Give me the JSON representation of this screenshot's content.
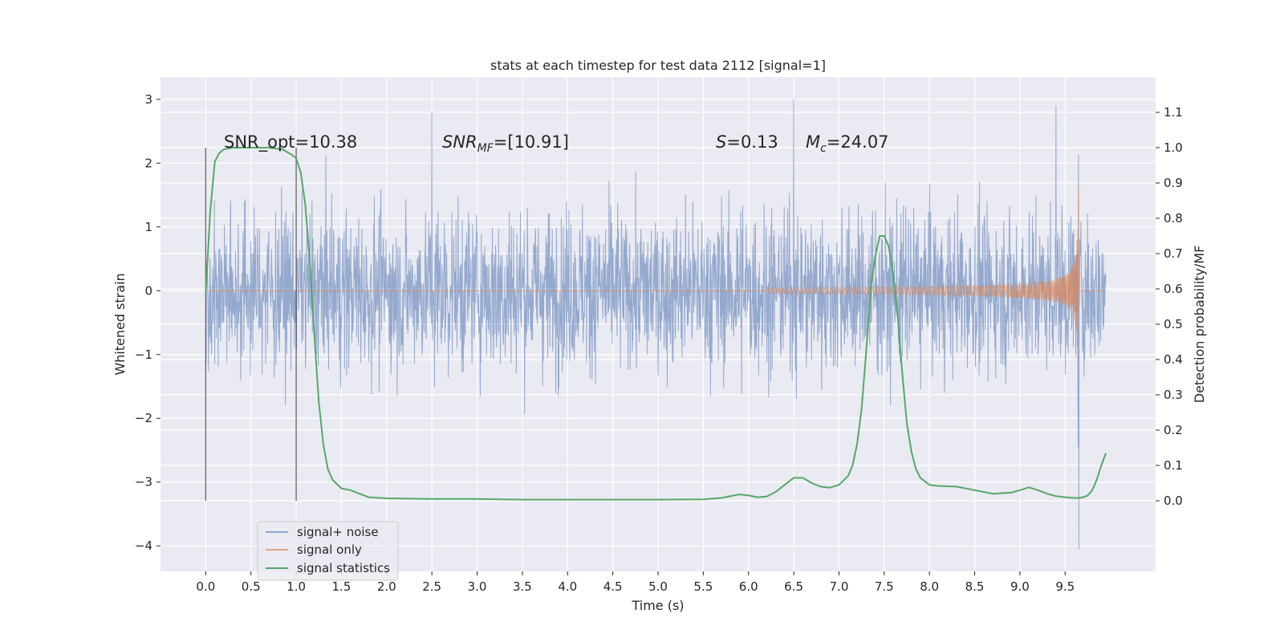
{
  "chart_data": {
    "type": "line",
    "title": "stats at each timestep for test data 2112 [signal=1]",
    "xlabel": "Time (s)",
    "ylabel": "Whitened strain",
    "ylabel_right": "Detection probability/MF",
    "xlim": [
      -0.5,
      10.5
    ],
    "ylim": [
      -4.4,
      3.35
    ],
    "ylim_right": [
      -0.2,
      1.2
    ],
    "x_ticks": [
      "0.0",
      "0.5",
      "1.0",
      "1.5",
      "2.0",
      "2.5",
      "3.0",
      "3.5",
      "4.0",
      "4.5",
      "5.0",
      "5.5",
      "6.0",
      "6.5",
      "7.0",
      "7.5",
      "8.0",
      "8.5",
      "9.0",
      "9.5"
    ],
    "y_ticks": [
      "−4",
      "−3",
      "−2",
      "−1",
      "0",
      "1",
      "2",
      "3"
    ],
    "y_ticks_right": [
      "0.0",
      "0.1",
      "0.2",
      "0.3",
      "0.4",
      "0.5",
      "0.6",
      "0.7",
      "0.8",
      "0.9",
      "1.0",
      "1.1"
    ],
    "grid": true,
    "legend_position": "lower-left",
    "annotations": {
      "snr_opt": "SNR_opt=10.38",
      "snr_mf_var": "SNR",
      "snr_mf_sub": "MF",
      "snr_mf_val": "=[10.91]",
      "s_var": "S",
      "s_val": "=0.13",
      "mc_var": "M",
      "mc_sub": "c",
      "mc_val": "=24.07"
    },
    "vertical_lines_x": [
      0.0,
      1.0
    ],
    "series": [
      {
        "name": "signal+ noise",
        "color": "#4c72b0",
        "axis": "left",
        "description_points": {
          "x_start": 0.0,
          "x_end": 9.95,
          "typical_envelope": [
            -1.5,
            1.6
          ],
          "peak_max": 3.0,
          "peak_min": -4.05,
          "min_at_x": 9.65
        }
      },
      {
        "name": "signal only",
        "color": "#dd8452",
        "axis": "left",
        "chirp": {
          "x_start": 6.4,
          "x_merge": 9.65,
          "max_amplitude": 1.7
        }
      },
      {
        "name": "signal statistics",
        "color": "#55a868",
        "axis": "right",
        "x": [
          0.0,
          0.05,
          0.1,
          0.15,
          0.2,
          0.3,
          0.5,
          0.7,
          0.85,
          0.95,
          1.0,
          1.05,
          1.1,
          1.15,
          1.2,
          1.25,
          1.3,
          1.35,
          1.4,
          1.5,
          1.6,
          1.7,
          1.8,
          2.0,
          2.5,
          3.0,
          3.5,
          4.0,
          4.5,
          5.0,
          5.5,
          5.7,
          5.8,
          5.9,
          6.0,
          6.1,
          6.2,
          6.3,
          6.4,
          6.5,
          6.6,
          6.7,
          6.8,
          6.9,
          7.0,
          7.1,
          7.15,
          7.2,
          7.25,
          7.3,
          7.35,
          7.4,
          7.45,
          7.5,
          7.55,
          7.6,
          7.65,
          7.7,
          7.75,
          7.8,
          7.85,
          7.9,
          8.0,
          8.1,
          8.3,
          8.5,
          8.7,
          8.9,
          9.0,
          9.1,
          9.2,
          9.3,
          9.4,
          9.5,
          9.6,
          9.65,
          9.7,
          9.75,
          9.8,
          9.85,
          9.9,
          9.95
        ],
        "values": [
          0.59,
          0.82,
          0.96,
          0.985,
          0.995,
          1.0,
          1.0,
          1.0,
          0.995,
          0.98,
          0.97,
          0.93,
          0.84,
          0.68,
          0.47,
          0.28,
          0.16,
          0.09,
          0.06,
          0.035,
          0.03,
          0.02,
          0.01,
          0.007,
          0.005,
          0.005,
          0.003,
          0.003,
          0.003,
          0.003,
          0.004,
          0.008,
          0.013,
          0.018,
          0.015,
          0.01,
          0.012,
          0.025,
          0.045,
          0.065,
          0.065,
          0.05,
          0.04,
          0.037,
          0.045,
          0.07,
          0.1,
          0.16,
          0.26,
          0.42,
          0.6,
          0.69,
          0.75,
          0.75,
          0.72,
          0.64,
          0.52,
          0.36,
          0.22,
          0.14,
          0.09,
          0.065,
          0.045,
          0.042,
          0.04,
          0.03,
          0.02,
          0.023,
          0.03,
          0.038,
          0.03,
          0.02,
          0.013,
          0.01,
          0.008,
          0.008,
          0.01,
          0.015,
          0.03,
          0.06,
          0.1,
          0.135
        ]
      }
    ]
  }
}
